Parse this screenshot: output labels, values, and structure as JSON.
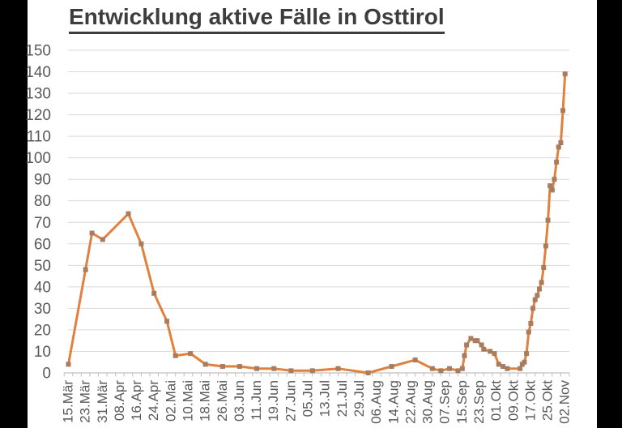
{
  "frame": {
    "background": "#000000",
    "card_background": "#ffffff"
  },
  "chart_data": {
    "type": "line",
    "title": "Entwicklung aktive Fälle in Osttirol",
    "xlabel": "",
    "ylabel": "",
    "ylim": [
      0,
      150
    ],
    "y_tick_step": 10,
    "y_ticks": [
      0,
      10,
      20,
      30,
      40,
      50,
      60,
      70,
      80,
      90,
      100,
      110,
      120,
      130,
      140,
      150
    ],
    "x_range_days": [
      0,
      232
    ],
    "minor_tick_interval_days": 4,
    "grid": "horizontal",
    "legend": "none",
    "x_labels": [
      {
        "label": "15.Mär",
        "day": 0
      },
      {
        "label": "23.Mär",
        "day": 8
      },
      {
        "label": "31.Mär",
        "day": 16
      },
      {
        "label": "08.Apr",
        "day": 24
      },
      {
        "label": "16.Apr",
        "day": 32
      },
      {
        "label": "24.Apr",
        "day": 40
      },
      {
        "label": "02.Mai",
        "day": 48
      },
      {
        "label": "10.Mai",
        "day": 56
      },
      {
        "label": "18.Mai",
        "day": 64
      },
      {
        "label": "26.Mai",
        "day": 72
      },
      {
        "label": "03.Jun",
        "day": 80
      },
      {
        "label": "11.Jun",
        "day": 88
      },
      {
        "label": "19.Jun",
        "day": 96
      },
      {
        "label": "27.Jun",
        "day": 104
      },
      {
        "label": "05.Jul",
        "day": 112
      },
      {
        "label": "13.Jul",
        "day": 120
      },
      {
        "label": "21.Jul",
        "day": 128
      },
      {
        "label": "29.Jul",
        "day": 136
      },
      {
        "label": "06.Aug",
        "day": 144
      },
      {
        "label": "14.Aug",
        "day": 152
      },
      {
        "label": "22.Aug",
        "day": 160
      },
      {
        "label": "30.Aug",
        "day": 168
      },
      {
        "label": "07.Sep",
        "day": 176
      },
      {
        "label": "15.Sep",
        "day": 184
      },
      {
        "label": "23.Sep",
        "day": 192
      },
      {
        "label": "01.Okt",
        "day": 200
      },
      {
        "label": "09.Okt",
        "day": 208
      },
      {
        "label": "17.Okt",
        "day": 216
      },
      {
        "label": "25.Okt",
        "day": 224
      },
      {
        "label": "02.Nov",
        "day": 232
      }
    ],
    "points": [
      {
        "date": "15.Mär",
        "day": 0,
        "value": 4
      },
      {
        "date": "23.Mär",
        "day": 8,
        "value": 48
      },
      {
        "date": "26.Mär",
        "day": 11,
        "value": 65
      },
      {
        "date": "31.Mär",
        "day": 16,
        "value": 62
      },
      {
        "date": "12.Apr",
        "day": 28,
        "value": 74
      },
      {
        "date": "18.Apr",
        "day": 34,
        "value": 60
      },
      {
        "date": "24.Apr",
        "day": 40,
        "value": 37
      },
      {
        "date": "30.Apr",
        "day": 46,
        "value": 24
      },
      {
        "date": "04.Mai",
        "day": 50,
        "value": 8
      },
      {
        "date": "11.Mai",
        "day": 57,
        "value": 9
      },
      {
        "date": "18.Mai",
        "day": 64,
        "value": 4
      },
      {
        "date": "26.Mai",
        "day": 72,
        "value": 3
      },
      {
        "date": "03.Jun",
        "day": 80,
        "value": 3
      },
      {
        "date": "11.Jun",
        "day": 88,
        "value": 2
      },
      {
        "date": "19.Jun",
        "day": 96,
        "value": 2
      },
      {
        "date": "27.Jun",
        "day": 104,
        "value": 1
      },
      {
        "date": "07.Jul",
        "day": 114,
        "value": 1
      },
      {
        "date": "19.Jul",
        "day": 126,
        "value": 2
      },
      {
        "date": "02.Aug",
        "day": 140,
        "value": 0
      },
      {
        "date": "13.Aug",
        "day": 151,
        "value": 3
      },
      {
        "date": "24.Aug",
        "day": 162,
        "value": 6
      },
      {
        "date": "01.Sep",
        "day": 170,
        "value": 2
      },
      {
        "date": "05.Sep",
        "day": 174,
        "value": 1
      },
      {
        "date": "09.Sep",
        "day": 178,
        "value": 2
      },
      {
        "date": "13.Sep",
        "day": 182,
        "value": 1
      },
      {
        "date": "15.Sep",
        "day": 184,
        "value": 2
      },
      {
        "date": "16.Sep",
        "day": 185,
        "value": 8
      },
      {
        "date": "17.Sep",
        "day": 186,
        "value": 13
      },
      {
        "date": "19.Sep",
        "day": 188,
        "value": 16
      },
      {
        "date": "21.Sep",
        "day": 190,
        "value": 15
      },
      {
        "date": "22.Sep",
        "day": 191,
        "value": 15
      },
      {
        "date": "24.Sep",
        "day": 193,
        "value": 13
      },
      {
        "date": "25.Sep",
        "day": 194,
        "value": 11
      },
      {
        "date": "28.Sep",
        "day": 197,
        "value": 10
      },
      {
        "date": "30.Sep",
        "day": 199,
        "value": 9
      },
      {
        "date": "02.Okt",
        "day": 201,
        "value": 4
      },
      {
        "date": "04.Okt",
        "day": 203,
        "value": 3
      },
      {
        "date": "06.Okt",
        "day": 205,
        "value": 2
      },
      {
        "date": "12.Okt",
        "day": 211,
        "value": 2
      },
      {
        "date": "13.Okt",
        "day": 212,
        "value": 4
      },
      {
        "date": "14.Okt",
        "day": 213,
        "value": 5
      },
      {
        "date": "15.Okt",
        "day": 214,
        "value": 9
      },
      {
        "date": "16.Okt",
        "day": 215,
        "value": 19
      },
      {
        "date": "17.Okt",
        "day": 216,
        "value": 23
      },
      {
        "date": "18.Okt",
        "day": 217,
        "value": 30
      },
      {
        "date": "19.Okt",
        "day": 218,
        "value": 34
      },
      {
        "date": "20.Okt",
        "day": 219,
        "value": 36
      },
      {
        "date": "21.Okt",
        "day": 220,
        "value": 39
      },
      {
        "date": "22.Okt",
        "day": 221,
        "value": 42
      },
      {
        "date": "23.Okt",
        "day": 222,
        "value": 49
      },
      {
        "date": "24.Okt",
        "day": 223,
        "value": 59
      },
      {
        "date": "25.Okt",
        "day": 224,
        "value": 71
      },
      {
        "date": "26.Okt",
        "day": 225,
        "value": 87
      },
      {
        "date": "27.Okt",
        "day": 226,
        "value": 85
      },
      {
        "date": "28.Okt",
        "day": 227,
        "value": 90
      },
      {
        "date": "29.Okt",
        "day": 228,
        "value": 98
      },
      {
        "date": "30.Okt",
        "day": 229,
        "value": 105
      },
      {
        "date": "31.Okt",
        "day": 230,
        "value": 107
      },
      {
        "date": "01.Nov",
        "day": 231,
        "value": 122
      },
      {
        "date": "02.Nov",
        "day": 232,
        "value": 139
      }
    ],
    "colors": {
      "line": "#e1813d",
      "marker": "#a87c5f",
      "grid": "#d9d9d9",
      "axis": "#bfbfbf",
      "tick_label": "#595959",
      "title": "#3d3d3d"
    }
  }
}
